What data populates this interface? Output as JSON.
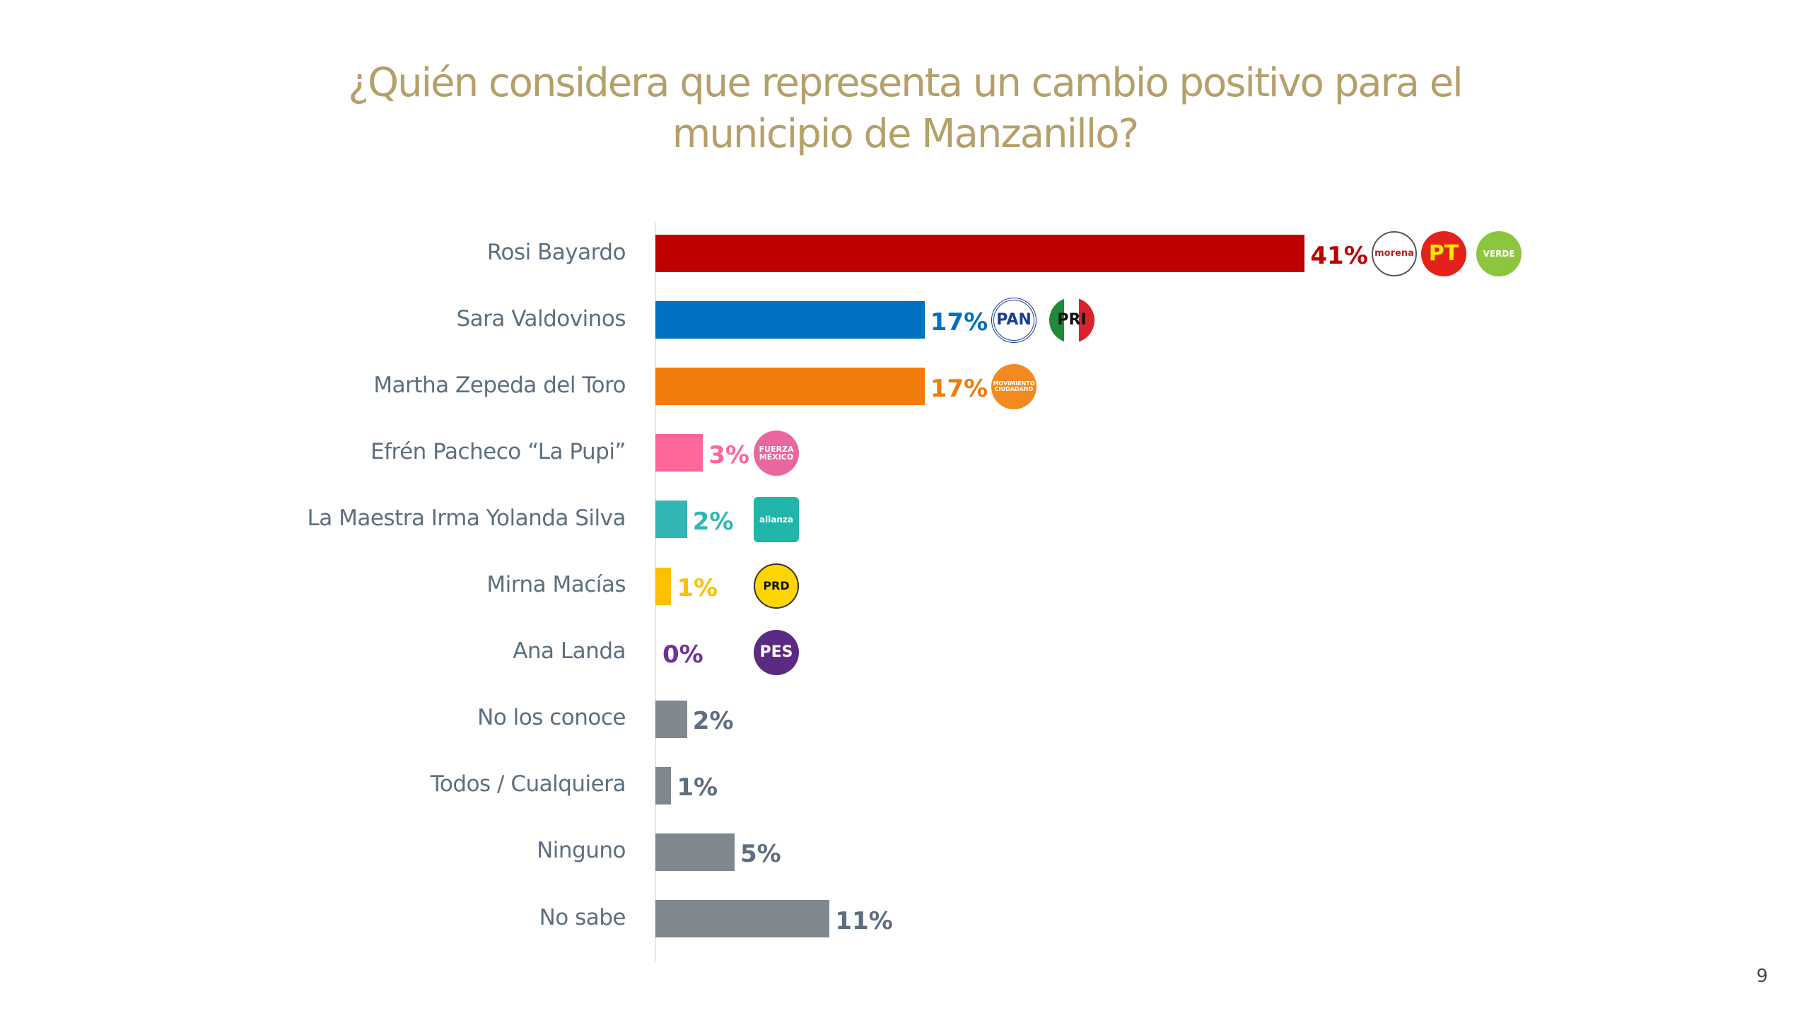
{
  "page_number": "9",
  "chart_data": {
    "type": "bar",
    "orientation": "horizontal",
    "title": "¿Quién considera que representa un cambio positivo para el municipio de Manzanillo?",
    "title_lines": [
      "¿Quién considera que representa un cambio positivo para el",
      "municipio de Manzanillo?"
    ],
    "xlabel": "",
    "ylabel": "",
    "xlim": [
      0,
      45
    ],
    "grid": false,
    "legend": "none",
    "categories": [
      "Rosi Bayardo",
      "Sara Valdovinos",
      "Martha Zepeda del Toro",
      "Efrén Pacheco “La Pupi”",
      "La Maestra Irma Yolanda Silva",
      "Mirna Macías",
      "Ana Landa",
      "No los conoce",
      "Todos / Cualquiera",
      "Ninguno",
      "No sabe"
    ],
    "values": [
      41,
      17,
      17,
      3,
      2,
      1,
      0,
      2,
      1,
      5,
      11
    ],
    "data_labels": [
      "41%",
      "17%",
      "17%",
      "3%",
      "2%",
      "1%",
      "0%",
      "2%",
      "1%",
      "5%",
      "11%"
    ],
    "colors": [
      "#C00000",
      "#0070C0",
      "#F07C0A",
      "#FF6699",
      "#33B5B5",
      "#FFC000",
      "#7030A0",
      "#7F878F",
      "#7F878F",
      "#7F878F",
      "#7F878F"
    ],
    "label_colors": [
      "#C00000",
      "#0070C0",
      "#F07C0A",
      "#FF6699",
      "#33B5B5",
      "#FFC000",
      "#7030A0",
      "#5D6E80",
      "#5D6E80",
      "#5D6E80",
      "#5D6E80"
    ],
    "party_logos": [
      [
        "morena",
        "PT",
        "VERDE"
      ],
      [
        "PAN",
        "PRI"
      ],
      [
        "MOVIMIENTO CIUDADANO"
      ],
      [
        "FUERZA MÉXICO"
      ],
      [
        "nueva alianza"
      ],
      [
        "PRD"
      ],
      [
        "PES"
      ],
      [],
      [],
      [],
      []
    ]
  }
}
